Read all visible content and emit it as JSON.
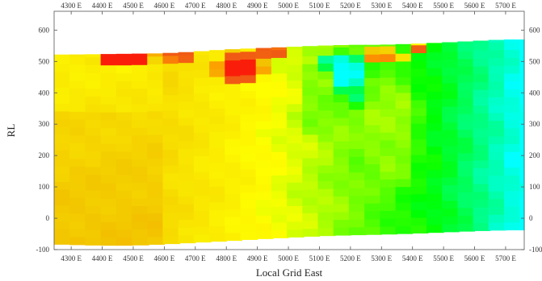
{
  "chart_data": {
    "type": "heatmap",
    "xlabel": "Local Grid East",
    "ylabel": "RL",
    "x_ticks": [
      "4300 E",
      "4400 E",
      "4500 E",
      "4600 E",
      "4700 E",
      "4800 E",
      "4900 E",
      "5000 E",
      "5100 E",
      "5200 E",
      "5300 E",
      "5400 E",
      "5500 E",
      "5600 E",
      "5700 E"
    ],
    "x_tick_values": [
      4300,
      4400,
      4500,
      4600,
      4700,
      4800,
      4900,
      5000,
      5100,
      5200,
      5300,
      5400,
      5500,
      5600,
      5700
    ],
    "y_ticks": [
      "600",
      "500",
      "400",
      "300",
      "200",
      "100",
      "0",
      "-100"
    ],
    "y_tick_values": [
      600,
      500,
      400,
      300,
      200,
      100,
      0,
      -100
    ],
    "xlim": [
      4245,
      5760
    ],
    "ylim": [
      -100,
      660
    ],
    "grid": false,
    "cell_width": 50,
    "cell_height": 25,
    "top_boundary": [
      [
        4245,
        522
      ],
      [
        4300,
        522
      ],
      [
        4450,
        524
      ],
      [
        4600,
        526
      ],
      [
        4700,
        531
      ],
      [
        4800,
        538
      ],
      [
        4900,
        542
      ],
      [
        5000,
        546
      ],
      [
        5100,
        550
      ],
      [
        5200,
        553
      ],
      [
        5300,
        553
      ],
      [
        5400,
        556
      ],
      [
        5500,
        560
      ],
      [
        5600,
        565
      ],
      [
        5700,
        570
      ],
      [
        5760,
        570
      ]
    ],
    "bottom_boundary": [
      [
        4245,
        -82
      ],
      [
        4400,
        -86
      ],
      [
        4500,
        -86
      ],
      [
        4600,
        -82
      ],
      [
        4700,
        -77
      ],
      [
        4800,
        -72
      ],
      [
        4900,
        -66
      ],
      [
        5000,
        -61
      ],
      [
        5100,
        -56
      ],
      [
        5200,
        -53
      ],
      [
        5300,
        -51
      ],
      [
        5400,
        -48
      ],
      [
        5500,
        -44
      ],
      [
        5600,
        -40
      ],
      [
        5700,
        -37
      ],
      [
        5760,
        -37
      ]
    ],
    "color_stops": [
      "#f2c500",
      "#ffff00",
      "#00ff00",
      "#00ffff"
    ],
    "anomalies": [
      {
        "type": "hot",
        "x": 4475,
        "y": 510,
        "rx": 110,
        "ry": 20,
        "v": -1.6
      },
      {
        "type": "hot",
        "x": 4640,
        "y": 518,
        "rx": 80,
        "ry": 15,
        "v": -1.3
      },
      {
        "type": "hot",
        "x": 4850,
        "y": 480,
        "rx": 90,
        "ry": 60,
        "v": -1.4
      },
      {
        "type": "hot",
        "x": 4950,
        "y": 530,
        "rx": 70,
        "ry": 20,
        "v": -1.0
      },
      {
        "type": "hot",
        "x": 5300,
        "y": 520,
        "rx": 40,
        "ry": 30,
        "v": -0.9
      },
      {
        "type": "hot",
        "x": 5410,
        "y": 540,
        "rx": 30,
        "ry": 20,
        "v": -1.0
      },
      {
        "type": "hot",
        "x": 5350,
        "y": 515,
        "rx": 30,
        "ry": 20,
        "v": -0.5
      },
      {
        "type": "cool",
        "x": 5175,
        "y": 470,
        "rx": 110,
        "ry": 70,
        "v": 2.0
      },
      {
        "type": "cool",
        "x": 5175,
        "y": 380,
        "rx": 100,
        "ry": 50,
        "v": 1.75
      },
      {
        "type": "green",
        "x": 5140,
        "y": 330,
        "rx": 120,
        "ry": 90,
        "v": 1.0
      },
      {
        "type": "green",
        "x": 5330,
        "y": 290,
        "rx": 110,
        "ry": 220,
        "v": 0.95
      },
      {
        "type": "green",
        "x": 5100,
        "y": 420,
        "rx": 60,
        "ry": 90,
        "v": 1.0
      }
    ]
  }
}
